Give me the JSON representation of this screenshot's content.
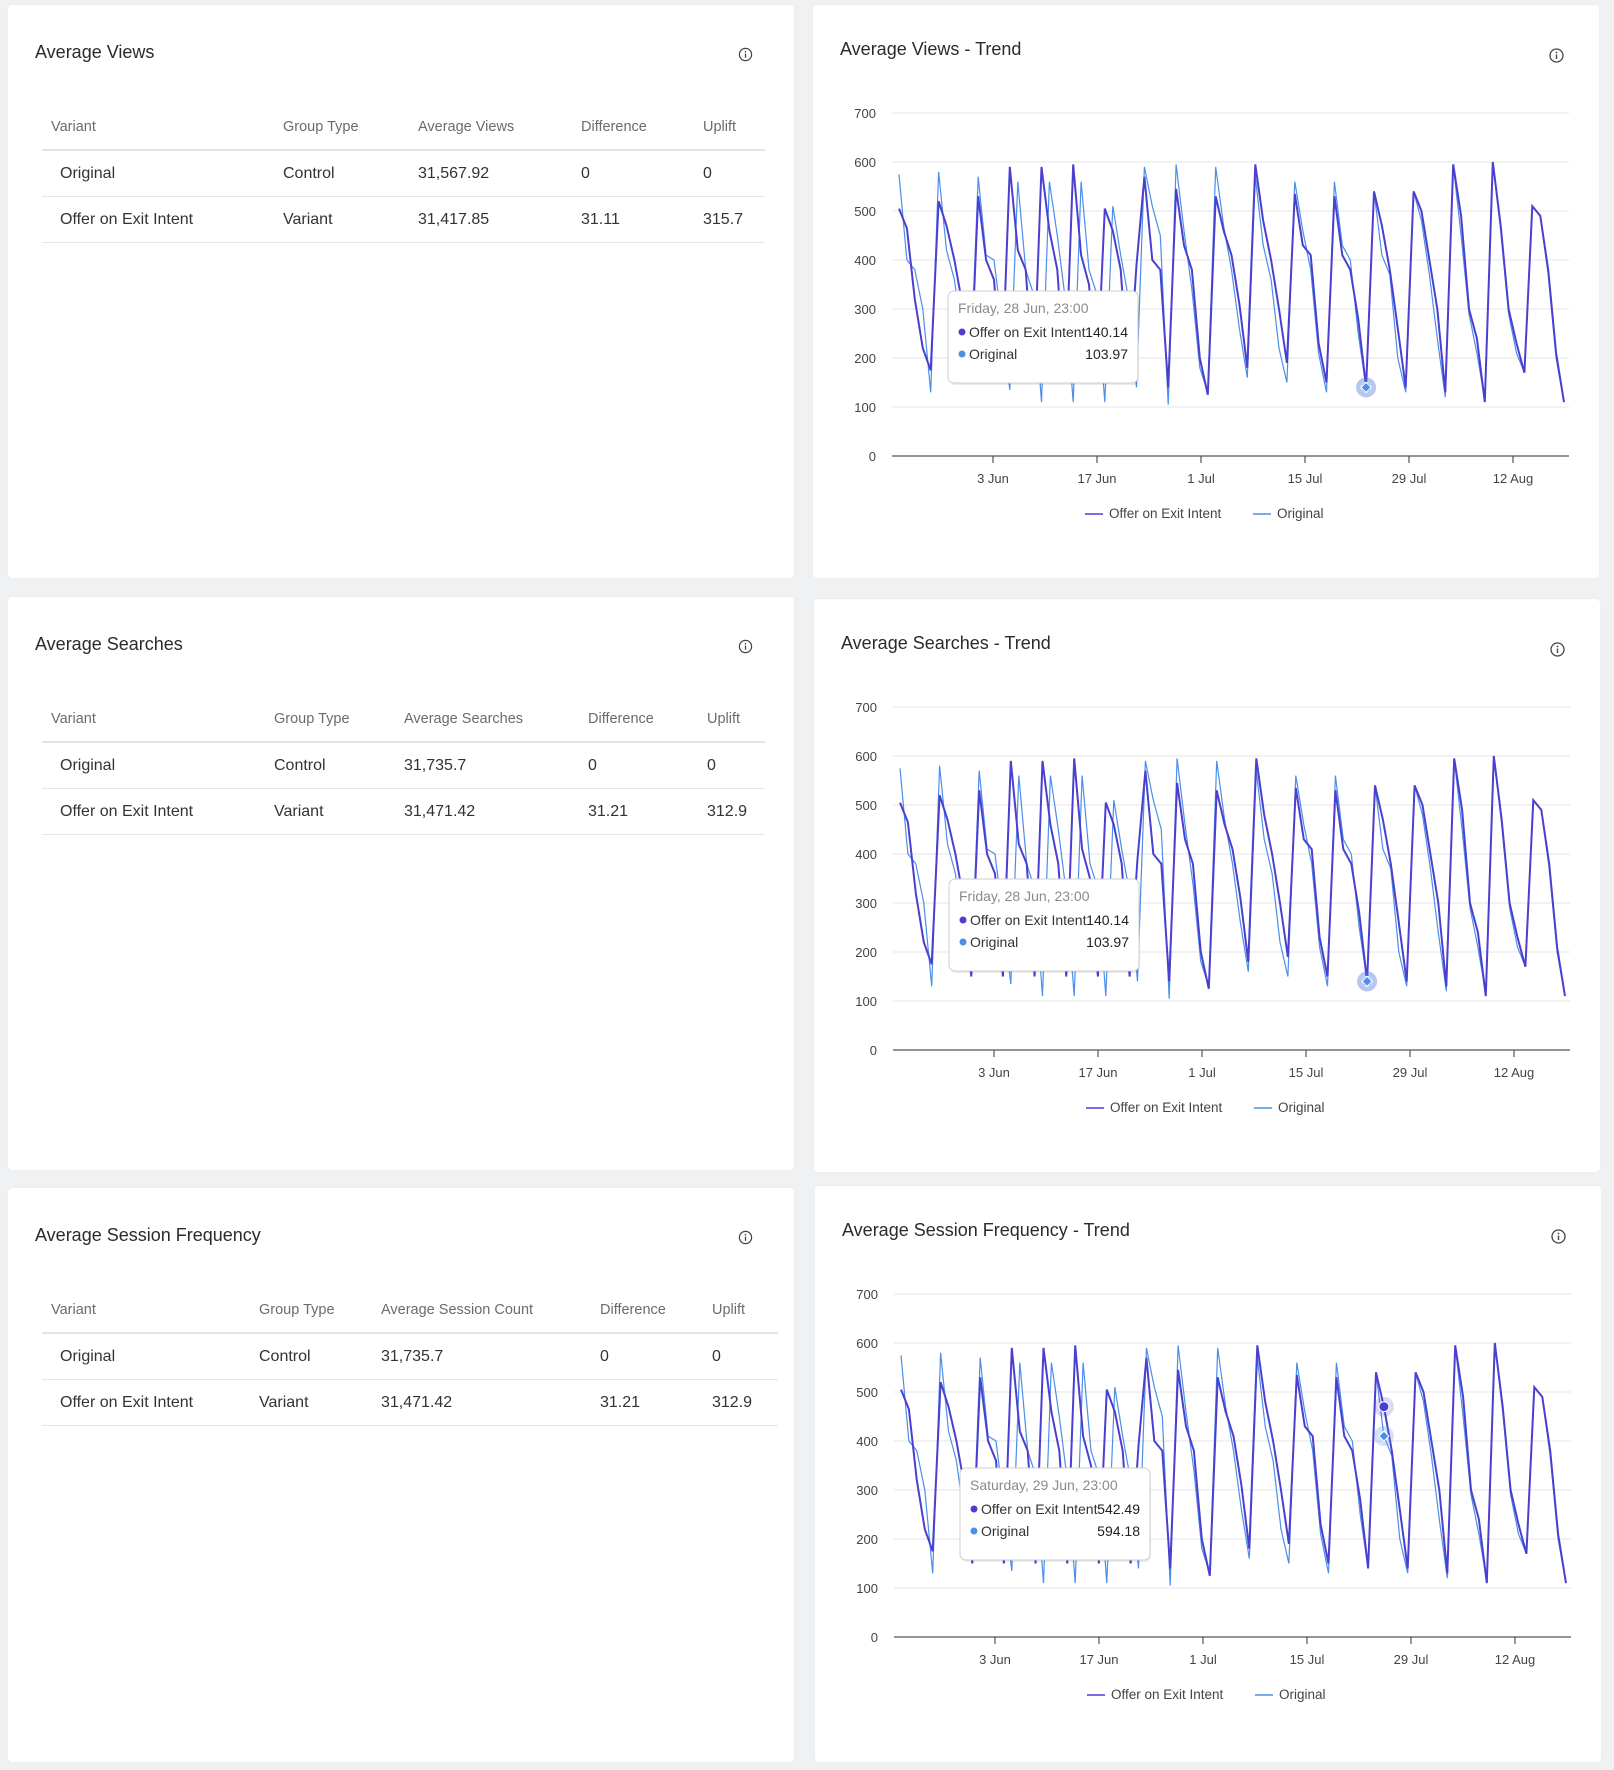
{
  "colors": {
    "variant": "#4b3fd0",
    "original": "#4a8fe8"
  },
  "icons": {
    "info": "info-circle-icon"
  },
  "panels": [
    {
      "title": "Average Views",
      "headers": [
        "Variant",
        "Group Type",
        "Average Views",
        "Difference",
        "Uplift"
      ],
      "rows": [
        [
          "Original",
          "Control",
          "31,567.92",
          "0",
          "0"
        ],
        [
          "Offer on Exit Intent",
          "Variant",
          "31,417.85",
          "31.11",
          "315.7"
        ]
      ]
    },
    {
      "title": "Average Searches",
      "headers": [
        "Variant",
        "Group Type",
        "Average Searches",
        "Difference",
        "Uplift"
      ],
      "rows": [
        [
          "Original",
          "Control",
          "31,735.7",
          "0",
          "0"
        ],
        [
          "Offer on Exit Intent",
          "Variant",
          "31,471.42",
          "31.21",
          "312.9"
        ]
      ]
    },
    {
      "title": "Average Session Frequency",
      "headers": [
        "Variant",
        "Group Type",
        "Average Session Count",
        "Difference",
        "Uplift"
      ],
      "rows": [
        [
          "Original",
          "Control",
          "31,735.7",
          "0",
          "0"
        ],
        [
          "Offer on Exit Intent",
          "Variant",
          "31,471.42",
          "31.21",
          "312.9"
        ]
      ]
    }
  ],
  "trends": [
    {
      "title": "Average Views",
      "title_suffix": " - Trend",
      "tooltip": {
        "date": "Friday, 28 Jun, 23:00",
        "rows": [
          [
            "Offer on Exit Intent",
            "140.14"
          ],
          [
            "Original",
            "103.97"
          ]
        ]
      }
    },
    {
      "title": "Average Searches",
      "title_suffix": " - Trend",
      "tooltip": {
        "date": "Friday, 28 Jun, 23:00",
        "rows": [
          [
            "Offer on Exit Intent",
            "140.14"
          ],
          [
            "Original",
            "103.97"
          ]
        ]
      }
    },
    {
      "title": "Average Session Frequency",
      "title_suffix": " - Trend",
      "tooltip": {
        "date": "Saturday, 29 Jun, 23:00",
        "rows": [
          [
            "Offer on Exit Intent",
            "542.49"
          ],
          [
            "Original",
            "594.18"
          ]
        ]
      }
    }
  ],
  "chart_data": {
    "type": "line",
    "x_ticks": [
      "3 Jun",
      "17 Jun",
      "1 Jul",
      "15 Jul",
      "29 Jul",
      "12 Aug"
    ],
    "y_ticks": [
      0,
      100,
      200,
      300,
      400,
      500,
      600,
      700
    ],
    "ylim": [
      0,
      700
    ],
    "legend_position": "bottom",
    "grid": true,
    "series": [
      {
        "name": "Offer on Exit Intent",
        "values": [
          505,
          465,
          320,
          220,
          175,
          520,
          470,
          400,
          310,
          150,
          530,
          400,
          360,
          150,
          590,
          420,
          380,
          150,
          590,
          460,
          380,
          150,
          595,
          410,
          350,
          150,
          505,
          460,
          380,
          150,
          390,
          570,
          400,
          380,
          140,
          545,
          430,
          380,
          200,
          125,
          530,
          460,
          410,
          310,
          180,
          595,
          480,
          400,
          300,
          190,
          535,
          430,
          410,
          230,
          150,
          530,
          410,
          380,
          280,
          140,
          540,
          470,
          380,
          260,
          140,
          540,
          500,
          400,
          300,
          130,
          595,
          490,
          300,
          240,
          110,
          600,
          470,
          300,
          230,
          170,
          510,
          490,
          380,
          210,
          110
        ]
      },
      {
        "name": "Original",
        "values": [
          575,
          400,
          380,
          300,
          130,
          580,
          420,
          360,
          240,
          160,
          570,
          410,
          400,
          270,
          135,
          560,
          380,
          330,
          110,
          560,
          450,
          320,
          110,
          560,
          380,
          330,
          110,
          510,
          410,
          320,
          140,
          590,
          510,
          450,
          105,
          595,
          460,
          340,
          180,
          130,
          590,
          470,
          380,
          260,
          160,
          570,
          430,
          360,
          220,
          150,
          560,
          460,
          380,
          210,
          130,
          560,
          430,
          400,
          250,
          140,
          540,
          410,
          370,
          200,
          130,
          540,
          480,
          370,
          240,
          120,
          595,
          450,
          290,
          210,
          115,
          600,
          460,
          290,
          210,
          170,
          510,
          490,
          370,
          200,
          110
        ]
      }
    ]
  }
}
